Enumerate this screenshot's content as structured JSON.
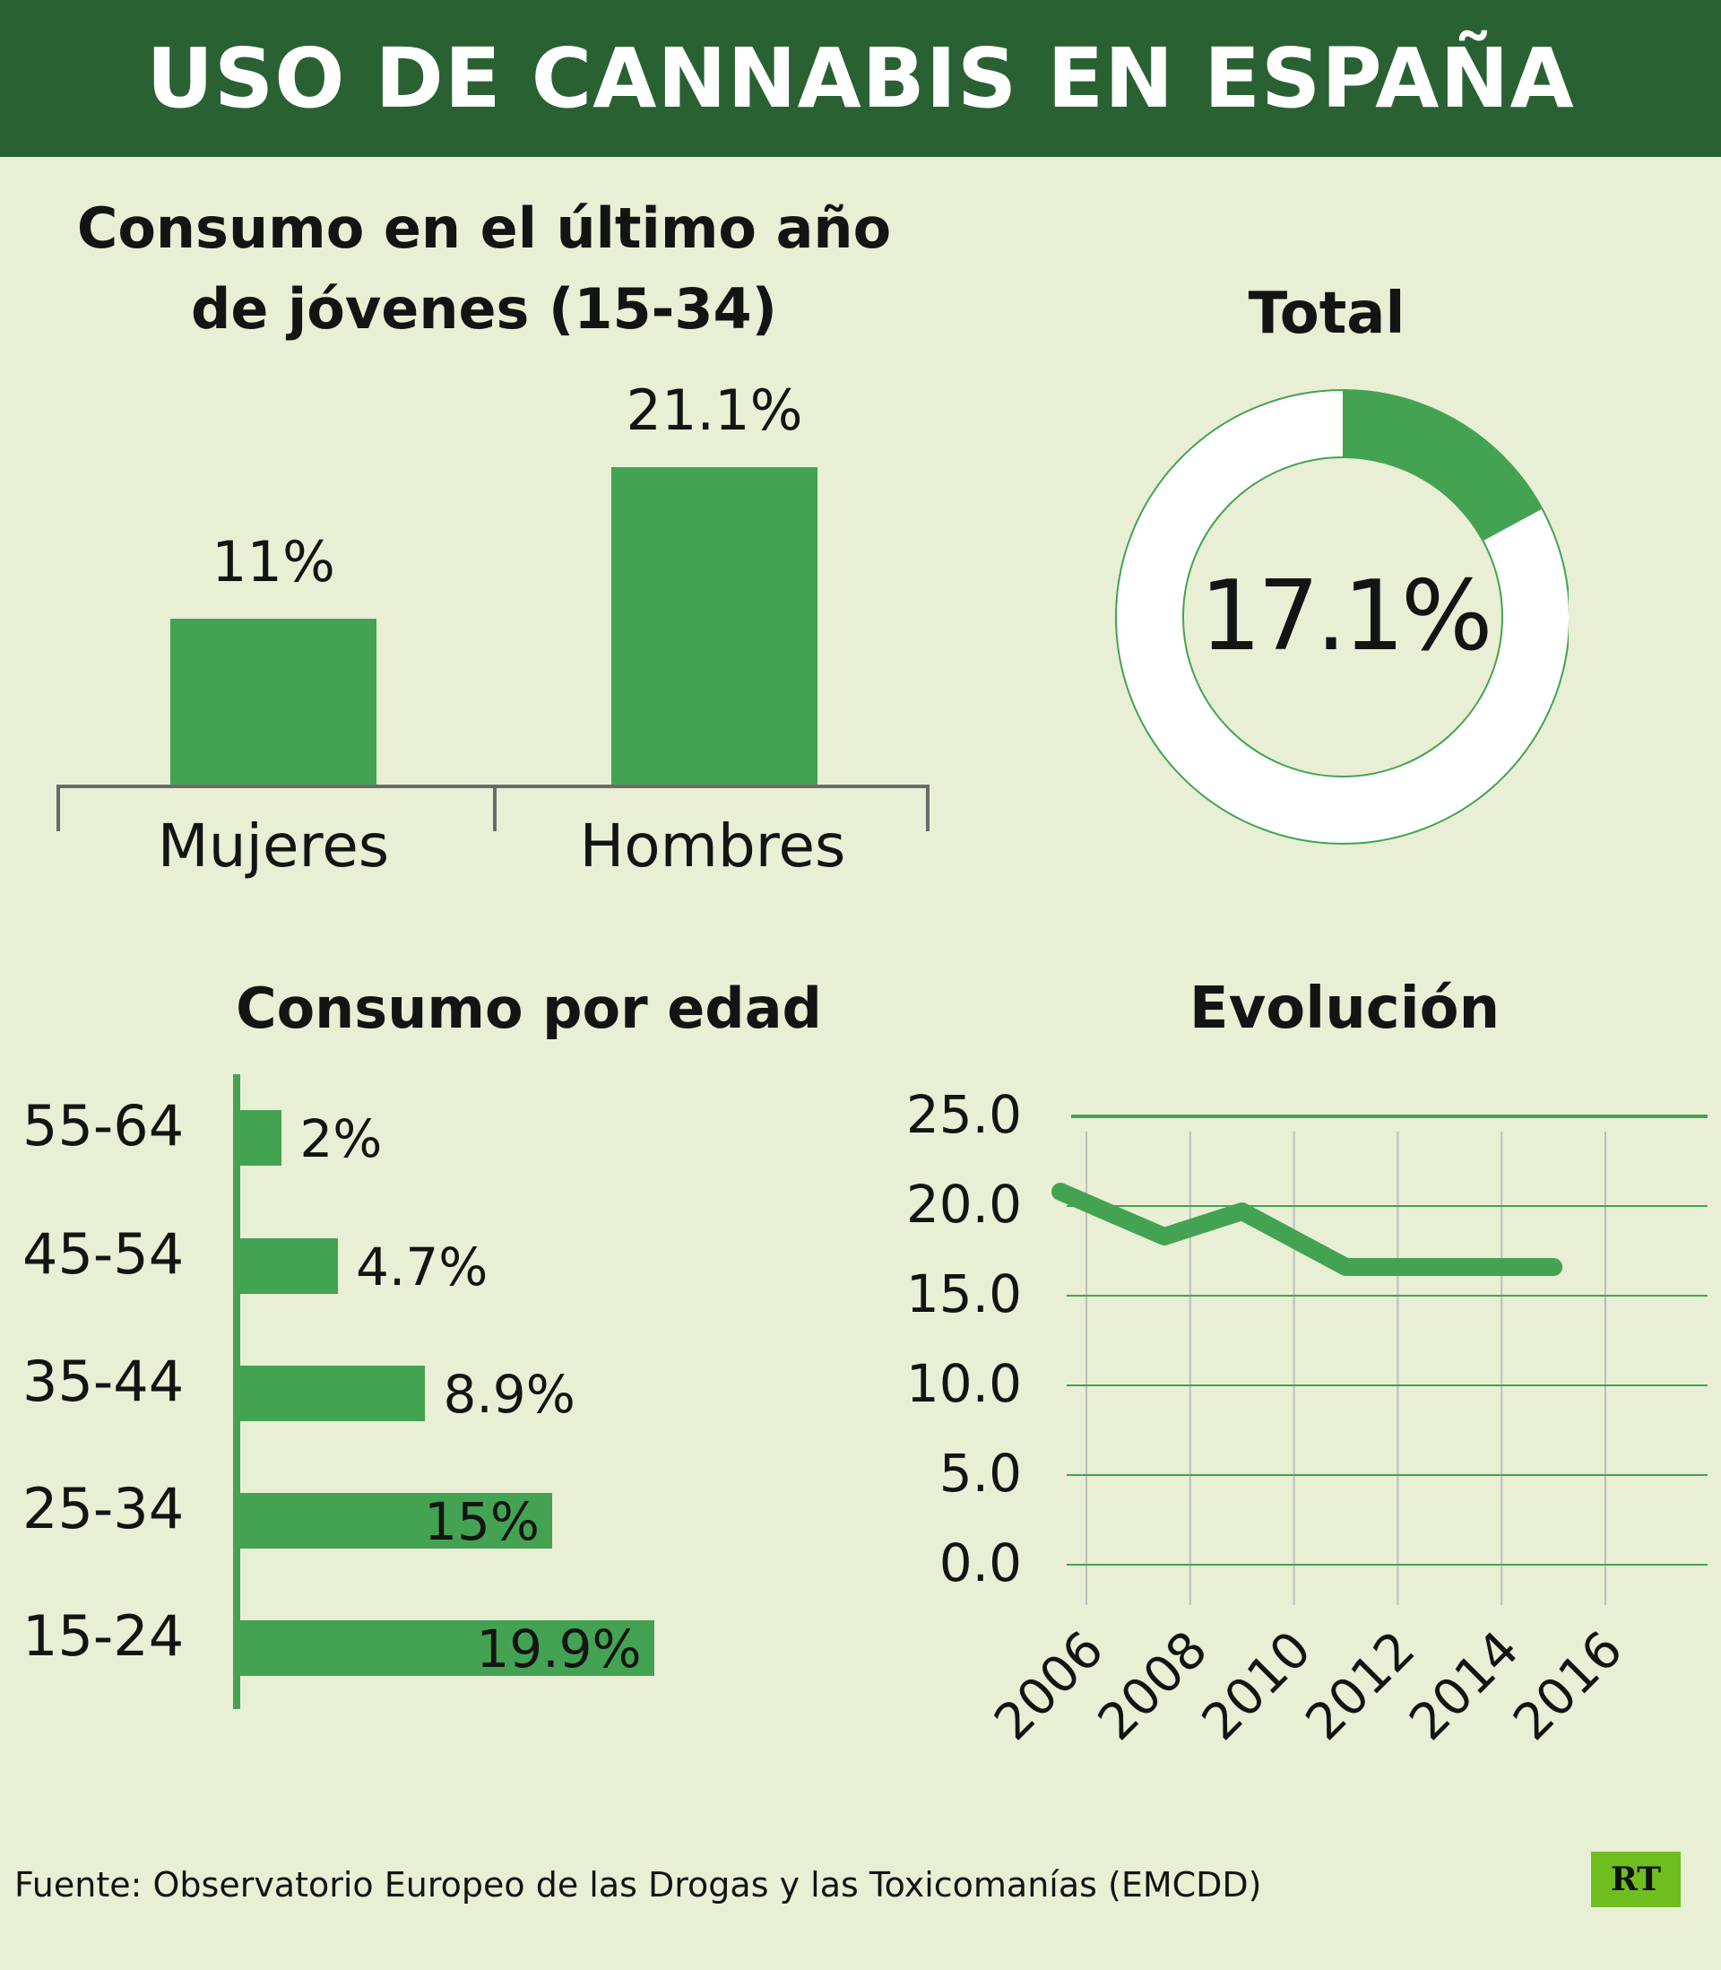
{
  "title": "USO DE CANNABIS EN ESPAÑA",
  "colors": {
    "header": "#2a6133",
    "accent": "#43a352",
    "background": "#e8efd4",
    "axis": "#6a6a6a"
  },
  "source": "Fuente: Observatorio Europeo de las Drogas y las Toxicomanías (EMCDD)",
  "logo": "RT",
  "chart_data": [
    {
      "type": "bar",
      "title": "Consumo en el último año de jóvenes (15-34)",
      "categories": [
        "Mujeres",
        "Hombres"
      ],
      "values": [
        11,
        21.1
      ],
      "labels": [
        "11%",
        "21.1%"
      ]
    },
    {
      "type": "pie",
      "title": "Total",
      "value": 17.1,
      "label": "17.1%"
    },
    {
      "type": "bar",
      "orientation": "horizontal",
      "title": "Consumo por edad",
      "categories": [
        "55-64",
        "45-54",
        "35-44",
        "25-34",
        "15-24"
      ],
      "values": [
        2,
        4.7,
        8.9,
        15,
        19.9
      ],
      "labels": [
        "2%",
        "4.7%",
        "8.9%",
        "15%",
        "19.9%"
      ]
    },
    {
      "type": "line",
      "title": "Evolución",
      "x": [
        2005.5,
        2007.5,
        2009,
        2011,
        2013,
        2015
      ],
      "y": [
        20.8,
        18.3,
        19.7,
        16.6,
        16.6,
        16.6
      ],
      "ylim": [
        0,
        25
      ],
      "yticks": [
        "0.0",
        "5.0",
        "10.0",
        "15.0",
        "20.0",
        "25.0"
      ],
      "xticks": [
        "2006",
        "2008",
        "2010",
        "2012",
        "2014",
        "2016"
      ]
    }
  ]
}
